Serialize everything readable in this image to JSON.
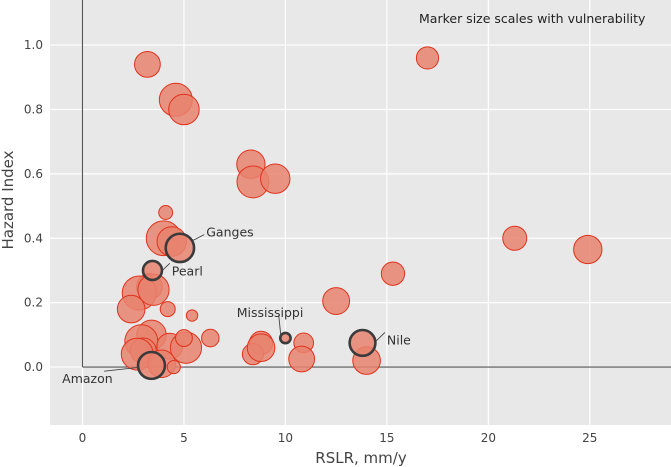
{
  "chart_data": {
    "type": "scatter",
    "title": "",
    "note": "Marker size scales with vulnerability",
    "xlabel": "RSLR, mm/y",
    "ylabel": "Hazard Index",
    "xlim": [
      -1.6,
      29
    ],
    "ylim": [
      -0.18,
      1.14
    ],
    "xticks": [
      0,
      5,
      10,
      15,
      20,
      25
    ],
    "yticks": [
      0.0,
      0.2,
      0.4,
      0.6,
      0.8,
      1.0
    ],
    "grid": true,
    "marker_size_meaning": "vulnerability (relative)",
    "colors": {
      "background": "#e8e8e8",
      "grid": "#ffffff",
      "marker_fill": "#e8826f",
      "marker_edge": "#e0331c",
      "highlight_edge": "#3b3b3b",
      "zero_lines": "#555555"
    },
    "points": [
      {
        "x": 3.2,
        "y": 0.94,
        "size": 0.55
      },
      {
        "x": 4.6,
        "y": 0.83,
        "size": 0.75
      },
      {
        "x": 5.0,
        "y": 0.8,
        "size": 0.68
      },
      {
        "x": 17.0,
        "y": 0.96,
        "size": 0.45
      },
      {
        "x": 8.3,
        "y": 0.63,
        "size": 0.62
      },
      {
        "x": 8.4,
        "y": 0.575,
        "size": 0.72
      },
      {
        "x": 9.5,
        "y": 0.585,
        "size": 0.65
      },
      {
        "x": 4.1,
        "y": 0.48,
        "size": 0.22
      },
      {
        "x": 4.0,
        "y": 0.4,
        "size": 0.8
      },
      {
        "x": 4.4,
        "y": 0.39,
        "size": 0.65
      },
      {
        "x": 21.3,
        "y": 0.4,
        "size": 0.5
      },
      {
        "x": 24.9,
        "y": 0.365,
        "size": 0.62
      },
      {
        "x": 15.3,
        "y": 0.29,
        "size": 0.48
      },
      {
        "x": 3.3,
        "y": 0.25,
        "size": 0.55
      },
      {
        "x": 2.8,
        "y": 0.23,
        "size": 0.78
      },
      {
        "x": 3.5,
        "y": 0.24,
        "size": 0.7
      },
      {
        "x": 2.4,
        "y": 0.18,
        "size": 0.6
      },
      {
        "x": 4.2,
        "y": 0.18,
        "size": 0.25
      },
      {
        "x": 5.4,
        "y": 0.16,
        "size": 0.15
      },
      {
        "x": 12.5,
        "y": 0.205,
        "size": 0.58
      },
      {
        "x": 3.4,
        "y": 0.1,
        "size": 0.65
      },
      {
        "x": 2.9,
        "y": 0.08,
        "size": 0.75
      },
      {
        "x": 3.0,
        "y": 0.05,
        "size": 0.55
      },
      {
        "x": 2.7,
        "y": 0.04,
        "size": 0.72
      },
      {
        "x": 4.3,
        "y": 0.065,
        "size": 0.55
      },
      {
        "x": 5.1,
        "y": 0.06,
        "size": 0.7
      },
      {
        "x": 5.0,
        "y": 0.09,
        "size": 0.3
      },
      {
        "x": 6.3,
        "y": 0.09,
        "size": 0.32
      },
      {
        "x": 3.9,
        "y": 0.01,
        "size": 0.6
      },
      {
        "x": 4.5,
        "y": 0.0,
        "size": 0.2
      },
      {
        "x": 8.8,
        "y": 0.075,
        "size": 0.48
      },
      {
        "x": 8.4,
        "y": 0.04,
        "size": 0.42
      },
      {
        "x": 8.8,
        "y": 0.06,
        "size": 0.6
      },
      {
        "x": 10.9,
        "y": 0.075,
        "size": 0.38
      },
      {
        "x": 10.8,
        "y": 0.025,
        "size": 0.55
      },
      {
        "x": 14.0,
        "y": 0.02,
        "size": 0.6
      }
    ],
    "highlighted": [
      {
        "label": "Ganges",
        "x": 4.8,
        "y": 0.37,
        "size": 0.62,
        "label_x": 6.1,
        "label_y": 0.405
      },
      {
        "label": "Pearl",
        "x": 3.45,
        "y": 0.3,
        "size": 0.36,
        "label_x": 4.4,
        "label_y": 0.285
      },
      {
        "label": "Mississippi",
        "x": 10.0,
        "y": 0.09,
        "size": 0.12,
        "label_x": 7.6,
        "label_y": 0.155
      },
      {
        "label": "Nile",
        "x": 13.8,
        "y": 0.075,
        "size": 0.55,
        "label_x": 15.0,
        "label_y": 0.07
      },
      {
        "label": "Amazon",
        "x": 3.4,
        "y": 0.005,
        "size": 0.58,
        "label_x": -1.0,
        "label_y": -0.05
      }
    ]
  }
}
